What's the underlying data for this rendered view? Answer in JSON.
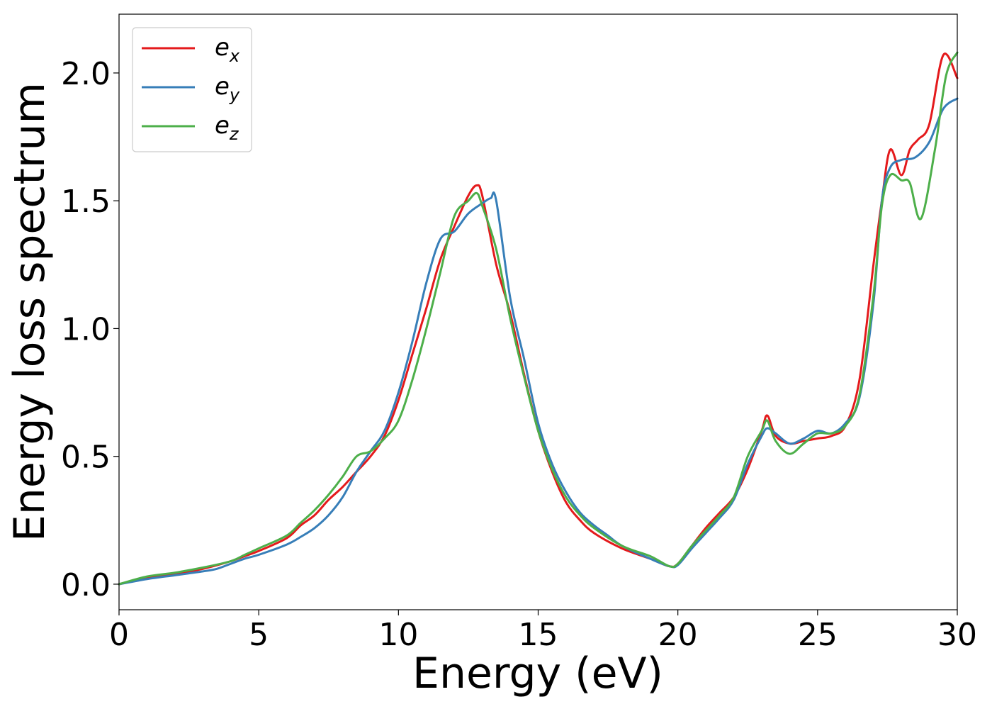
{
  "chart_data": {
    "type": "line",
    "title": "",
    "xlabel": "Energy (eV)",
    "ylabel": "Energy loss spectrum",
    "xlim": [
      0,
      30
    ],
    "ylim": [
      -0.1,
      2.23
    ],
    "x_ticks": [
      0,
      5,
      10,
      15,
      20,
      25,
      30
    ],
    "x_tick_labels": [
      "0",
      "5",
      "10",
      "15",
      "20",
      "25",
      "30"
    ],
    "y_ticks": [
      0.0,
      0.5,
      1.0,
      1.5,
      2.0
    ],
    "y_tick_labels": [
      "0.0",
      "0.5",
      "1.0",
      "1.5",
      "2.0"
    ],
    "grid": false,
    "legend_position": "top-left",
    "series": [
      {
        "name": "e_x",
        "label_base": "e",
        "label_sub": "x",
        "color": "#e41a1c",
        "x": [
          0,
          1,
          2,
          3,
          4,
          4.5,
          5,
          6,
          6.5,
          7,
          7.5,
          8,
          8.5,
          9,
          9.5,
          10,
          10.5,
          11,
          11.5,
          12,
          12.5,
          12.8,
          13,
          13.5,
          14,
          14.5,
          15,
          15.5,
          16,
          16.5,
          17,
          18,
          19,
          19.7,
          20,
          20.5,
          21,
          21.5,
          22,
          22.5,
          23,
          23.2,
          23.5,
          24,
          24.5,
          25,
          25.5,
          26,
          26.5,
          27,
          27.3,
          27.6,
          28,
          28.3,
          28.6,
          29,
          29.5,
          30
        ],
        "y": [
          0.0,
          0.025,
          0.04,
          0.06,
          0.09,
          0.11,
          0.13,
          0.18,
          0.23,
          0.27,
          0.33,
          0.38,
          0.44,
          0.5,
          0.58,
          0.72,
          0.9,
          1.08,
          1.27,
          1.4,
          1.52,
          1.56,
          1.52,
          1.25,
          1.06,
          0.82,
          0.6,
          0.44,
          0.32,
          0.25,
          0.2,
          0.14,
          0.1,
          0.07,
          0.08,
          0.15,
          0.22,
          0.28,
          0.34,
          0.45,
          0.6,
          0.66,
          0.58,
          0.55,
          0.56,
          0.57,
          0.58,
          0.62,
          0.8,
          1.25,
          1.5,
          1.7,
          1.6,
          1.7,
          1.74,
          1.8,
          2.07,
          1.98
        ]
      },
      {
        "name": "e_y",
        "label_base": "e",
        "label_sub": "y",
        "color": "#377eb8",
        "x": [
          0,
          1,
          2,
          3,
          3.5,
          4,
          4.5,
          5,
          6,
          6.5,
          7,
          7.5,
          8,
          8.5,
          9,
          9.5,
          10,
          10.5,
          11,
          11.5,
          12,
          12.5,
          13,
          13.3,
          13.5,
          14,
          14.5,
          15,
          15.5,
          16,
          16.5,
          17,
          17.5,
          18,
          19,
          19.7,
          20,
          20.5,
          21,
          21.5,
          22,
          22.5,
          23,
          23.2,
          23.5,
          24,
          24.5,
          25,
          25.5,
          26,
          26.5,
          27,
          27.3,
          27.6,
          28,
          28.5,
          29,
          29.5,
          30
        ],
        "y": [
          0.0,
          0.02,
          0.035,
          0.05,
          0.06,
          0.08,
          0.1,
          0.115,
          0.155,
          0.185,
          0.22,
          0.27,
          0.34,
          0.44,
          0.52,
          0.6,
          0.75,
          0.95,
          1.18,
          1.35,
          1.38,
          1.45,
          1.49,
          1.51,
          1.5,
          1.12,
          0.88,
          0.63,
          0.47,
          0.36,
          0.28,
          0.23,
          0.19,
          0.15,
          0.1,
          0.07,
          0.075,
          0.14,
          0.2,
          0.26,
          0.33,
          0.47,
          0.58,
          0.61,
          0.59,
          0.55,
          0.57,
          0.6,
          0.59,
          0.63,
          0.73,
          1.1,
          1.5,
          1.63,
          1.66,
          1.67,
          1.73,
          1.86,
          1.9
        ]
      },
      {
        "name": "e_z",
        "label_base": "e",
        "label_sub": "z",
        "color": "#4daf4a",
        "x": [
          0,
          1,
          2,
          3,
          4,
          4.5,
          5,
          6,
          6.5,
          7,
          7.5,
          8,
          8.5,
          9,
          9.5,
          10,
          10.5,
          11,
          11.5,
          12,
          12.5,
          12.8,
          13,
          13.5,
          14,
          14.5,
          15,
          15.5,
          16,
          16.5,
          17,
          18,
          19,
          19.7,
          20,
          20.5,
          21,
          21.5,
          22,
          22.5,
          23,
          23.2,
          23.5,
          24,
          24.5,
          25,
          25.5,
          26,
          26.5,
          27,
          27.3,
          27.6,
          28,
          28.3,
          28.7,
          29.2,
          29.6,
          30
        ],
        "y": [
          0.0,
          0.03,
          0.045,
          0.065,
          0.09,
          0.115,
          0.14,
          0.19,
          0.24,
          0.29,
          0.35,
          0.42,
          0.5,
          0.52,
          0.57,
          0.64,
          0.8,
          1.0,
          1.22,
          1.44,
          1.5,
          1.53,
          1.48,
          1.31,
          1.04,
          0.81,
          0.6,
          0.45,
          0.34,
          0.27,
          0.22,
          0.15,
          0.11,
          0.07,
          0.08,
          0.15,
          0.21,
          0.27,
          0.34,
          0.5,
          0.6,
          0.64,
          0.56,
          0.51,
          0.55,
          0.59,
          0.59,
          0.62,
          0.74,
          1.13,
          1.48,
          1.6,
          1.58,
          1.57,
          1.43,
          1.7,
          1.99,
          2.08
        ]
      }
    ]
  }
}
